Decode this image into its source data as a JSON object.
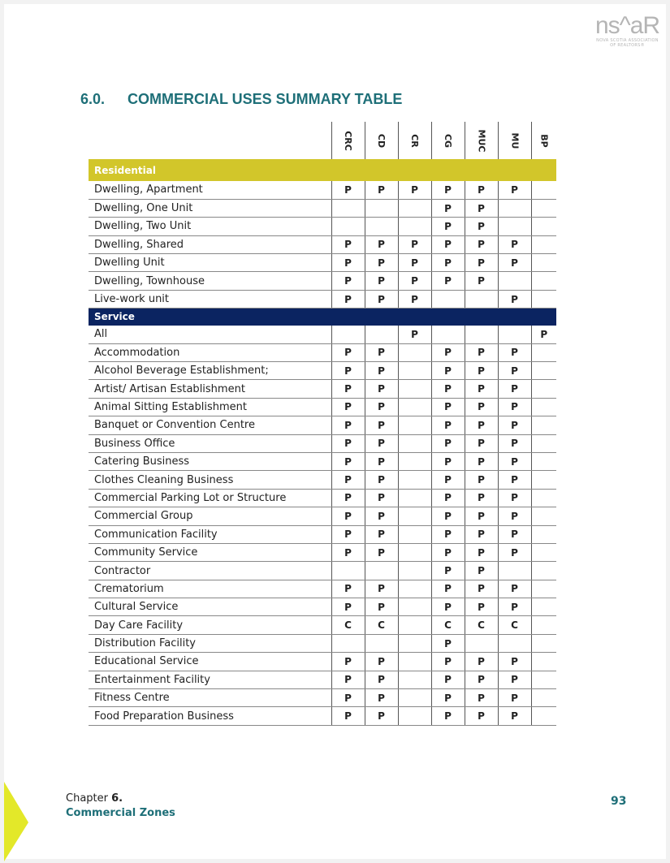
{
  "logo": {
    "mark": "ns^aR",
    "line1": "NOVA SCOTIA ASSOCIATION",
    "line2": "OF REALTORS®"
  },
  "heading": {
    "number": "6.0.",
    "title": "COMMERCIAL USES SUMMARY TABLE"
  },
  "table": {
    "columns": [
      "CRC",
      "CD",
      "CR",
      "CG",
      "MUC",
      "MU",
      "BP"
    ],
    "sections": [
      {
        "name": "Residential",
        "style": "res",
        "rows": [
          {
            "label": "Dwelling, Apartment",
            "values": [
              "P",
              "P",
              "P",
              "P",
              "P",
              "P",
              ""
            ]
          },
          {
            "label": "Dwelling, One Unit",
            "values": [
              "",
              "",
              "",
              "P",
              "P",
              "",
              ""
            ]
          },
          {
            "label": "Dwelling, Two Unit",
            "values": [
              "",
              "",
              "",
              "P",
              "P",
              "",
              ""
            ]
          },
          {
            "label": "Dwelling, Shared",
            "values": [
              "P",
              "P",
              "P",
              "P",
              "P",
              "P",
              ""
            ]
          },
          {
            "label": "Dwelling Unit",
            "values": [
              "P",
              "P",
              "P",
              "P",
              "P",
              "P",
              ""
            ]
          },
          {
            "label": "Dwelling, Townhouse",
            "values": [
              "P",
              "P",
              "P",
              "P",
              "P",
              "",
              ""
            ]
          },
          {
            "label": "Live-work unit",
            "values": [
              "P",
              "P",
              "P",
              "",
              "",
              "P",
              ""
            ]
          }
        ]
      },
      {
        "name": "Service",
        "style": "svc",
        "rows": [
          {
            "label": "All",
            "values": [
              "",
              "",
              "P",
              "",
              "",
              "",
              "P"
            ]
          },
          {
            "label": "Accommodation",
            "values": [
              "P",
              "P",
              "",
              "P",
              "P",
              "P",
              ""
            ]
          },
          {
            "label": "Alcohol Beverage Establishment;",
            "values": [
              "P",
              "P",
              "",
              "P",
              "P",
              "P",
              ""
            ]
          },
          {
            "label": "Artist/ Artisan Establishment",
            "values": [
              "P",
              "P",
              "",
              "P",
              "P",
              "P",
              ""
            ]
          },
          {
            "label": "Animal Sitting Establishment",
            "values": [
              "P",
              "P",
              "",
              "P",
              "P",
              "P",
              ""
            ]
          },
          {
            "label": "Banquet or Convention Centre",
            "values": [
              "P",
              "P",
              "",
              "P",
              "P",
              "P",
              ""
            ]
          },
          {
            "label": "Business Office",
            "values": [
              "P",
              "P",
              "",
              "P",
              "P",
              "P",
              ""
            ]
          },
          {
            "label": "Catering Business",
            "values": [
              "P",
              "P",
              "",
              "P",
              "P",
              "P",
              ""
            ]
          },
          {
            "label": "Clothes Cleaning Business",
            "values": [
              "P",
              "P",
              "",
              "P",
              "P",
              "P",
              ""
            ]
          },
          {
            "label": "Commercial Parking Lot or Structure",
            "values": [
              "P",
              "P",
              "",
              "P",
              "P",
              "P",
              ""
            ]
          },
          {
            "label": "Commercial Group",
            "values": [
              "P",
              "P",
              "",
              "P",
              "P",
              "P",
              ""
            ]
          },
          {
            "label": "Communication Facility",
            "values": [
              "P",
              "P",
              "",
              "P",
              "P",
              "P",
              ""
            ]
          },
          {
            "label": "Community Service",
            "values": [
              "P",
              "P",
              "",
              "P",
              "P",
              "P",
              ""
            ]
          },
          {
            "label": "Contractor",
            "values": [
              "",
              "",
              "",
              "P",
              "P",
              "",
              ""
            ]
          },
          {
            "label": "Crematorium",
            "values": [
              "P",
              "P",
              "",
              "P",
              "P",
              "P",
              ""
            ]
          },
          {
            "label": "Cultural Service",
            "values": [
              "P",
              "P",
              "",
              "P",
              "P",
              "P",
              ""
            ]
          },
          {
            "label": "Day Care Facility",
            "values": [
              "C",
              "C",
              "",
              "C",
              "C",
              "C",
              ""
            ]
          },
          {
            "label": "Distribution Facility",
            "values": [
              "",
              "",
              "",
              "P",
              "",
              "",
              ""
            ]
          },
          {
            "label": "Educational Service",
            "values": [
              "P",
              "P",
              "",
              "P",
              "P",
              "P",
              ""
            ]
          },
          {
            "label": "Entertainment Facility",
            "values": [
              "P",
              "P",
              "",
              "P",
              "P",
              "P",
              ""
            ]
          },
          {
            "label": "Fitness Centre",
            "values": [
              "P",
              "P",
              "",
              "P",
              "P",
              "P",
              ""
            ]
          },
          {
            "label": "Food Preparation Business",
            "values": [
              "P",
              "P",
              "",
              "P",
              "P",
              "P",
              ""
            ]
          }
        ]
      }
    ]
  },
  "footer": {
    "chapter_prefix": "Chapter ",
    "chapter_num": "6.",
    "zone": "Commercial Zones",
    "page": "93"
  },
  "colors": {
    "teal": "#1e6f78",
    "residential": "#d2c62a",
    "service": "#0b2461",
    "accent": "#e3e829"
  }
}
